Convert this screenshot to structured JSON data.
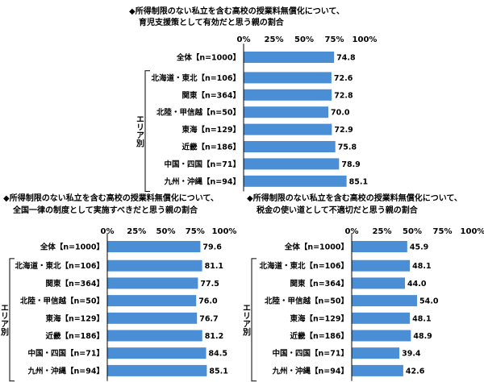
{
  "area_group_label": "エリア別",
  "chart_data": [
    {
      "type": "bar",
      "orientation": "horizontal",
      "title_lines": [
        "◆所得制限のない私立を含む高校の授業料無償化について、",
        "育児支援策として有効だと思う親の割合"
      ],
      "categories": [
        "全体【n=1000】",
        "北海道・東北【n=106】",
        "関東【n=364】",
        "北陸・甲信越【n=50】",
        "東海【n=129】",
        "近畿【n=186】",
        "中国・四国【n=71】",
        "九州・沖縄【n=94】"
      ],
      "values": [
        74.8,
        72.6,
        72.8,
        70.0,
        72.9,
        75.8,
        78.9,
        85.1
      ],
      "value_labels": [
        "74.8",
        "72.6",
        "72.8",
        "70.0",
        "72.9",
        "75.8",
        "78.9",
        "85.1"
      ],
      "ticks": [
        "0%",
        "25%",
        "50%",
        "75%",
        "100%"
      ],
      "xlim": [
        0,
        100
      ],
      "bar_color": "#4a8fd6",
      "grid": false
    },
    {
      "type": "bar",
      "orientation": "horizontal",
      "title_lines": [
        "◆所得制限のない私立を含む高校の授業料無償化について、",
        "全国一律の制度として実施すべきだと思う親の割合"
      ],
      "categories": [
        "全体【n=1000】",
        "北海道・東北【n=106】",
        "関東【n=364】",
        "北陸・甲信越【n=50】",
        "東海【n=129】",
        "近畿【n=186】",
        "中国・四国【n=71】",
        "九州・沖縄【n=94】"
      ],
      "values": [
        79.6,
        81.1,
        77.5,
        76.0,
        76.7,
        81.2,
        84.5,
        85.1
      ],
      "value_labels": [
        "79.6",
        "81.1",
        "77.5",
        "76.0",
        "76.7",
        "81.2",
        "84.5",
        "85.1"
      ],
      "ticks": [
        "0%",
        "25%",
        "50%",
        "75%",
        "100%"
      ],
      "xlim": [
        0,
        100
      ],
      "bar_color": "#4a8fd6",
      "grid": false
    },
    {
      "type": "bar",
      "orientation": "horizontal",
      "title_lines": [
        "◆所得制限のない私立を含む高校の授業料無償化について、",
        "税金の使い道として不適切だと思う親の割合"
      ],
      "categories": [
        "全体【n=1000】",
        "北海道・東北【n=106】",
        "関東【n=364】",
        "北陸・甲信越【n=50】",
        "東海【n=129】",
        "近畿【n=186】",
        "中国・四国【n=71】",
        "九州・沖縄【n=94】"
      ],
      "values": [
        45.9,
        48.1,
        44.0,
        54.0,
        48.1,
        48.9,
        39.4,
        42.6
      ],
      "value_labels": [
        "45.9",
        "48.1",
        "44.0",
        "54.0",
        "48.1",
        "48.9",
        "39.4",
        "42.6"
      ],
      "ticks": [
        "0%",
        "25%",
        "50%",
        "75%",
        "100%"
      ],
      "xlim": [
        0,
        100
      ],
      "bar_color": "#4a8fd6",
      "grid": false
    }
  ]
}
